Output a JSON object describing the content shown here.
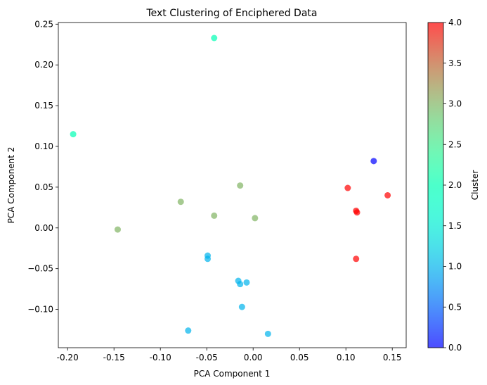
{
  "chart_data": {
    "type": "scatter",
    "title": "Text Clustering of Enciphered Data",
    "xlabel": "PCA Component 1",
    "ylabel": "PCA Component 2",
    "xlim": [
      -0.21,
      0.165
    ],
    "ylim": [
      -0.147,
      0.252
    ],
    "xticks": [
      "-0.20",
      "-0.15",
      "-0.10",
      "-0.05",
      "0.00",
      "0.05",
      "0.10",
      "0.15"
    ],
    "xtick_values": [
      -0.2,
      -0.15,
      -0.1,
      -0.05,
      0.0,
      0.05,
      0.1,
      0.15
    ],
    "yticks": [
      "−0.10",
      "−0.05",
      "0.00",
      "0.05",
      "0.10",
      "0.15",
      "0.20",
      "0.25"
    ],
    "ytick_values": [
      -0.1,
      -0.05,
      0.0,
      0.05,
      0.1,
      0.15,
      0.2,
      0.25
    ],
    "colorbar": {
      "label": "Cluster",
      "min": 0,
      "max": 4,
      "ticks": [
        "0.0",
        "0.5",
        "1.0",
        "1.5",
        "2.0",
        "2.5",
        "3.0",
        "3.5",
        "4.0"
      ],
      "tick_values": [
        0,
        0.5,
        1,
        1.5,
        2,
        2.5,
        3,
        3.5,
        4
      ],
      "colormap": "rainbow"
    },
    "grid": false,
    "points": [
      {
        "x": -0.042,
        "y": 0.233,
        "cluster": 2
      },
      {
        "x": -0.194,
        "y": 0.115,
        "cluster": 2
      },
      {
        "x": 0.13,
        "y": 0.082,
        "cluster": 0
      },
      {
        "x": 0.102,
        "y": 0.049,
        "cluster": 4
      },
      {
        "x": 0.145,
        "y": 0.04,
        "cluster": 4
      },
      {
        "x": 0.111,
        "y": 0.021,
        "cluster": 4
      },
      {
        "x": 0.112,
        "y": 0.019,
        "cluster": 4
      },
      {
        "x": 0.111,
        "y": -0.038,
        "cluster": 4
      },
      {
        "x": -0.014,
        "y": 0.052,
        "cluster": 3
      },
      {
        "x": -0.078,
        "y": 0.032,
        "cluster": 3
      },
      {
        "x": -0.042,
        "y": 0.015,
        "cluster": 3
      },
      {
        "x": 0.002,
        "y": 0.012,
        "cluster": 3
      },
      {
        "x": -0.146,
        "y": -0.002,
        "cluster": 3
      },
      {
        "x": -0.049,
        "y": -0.034,
        "cluster": 1
      },
      {
        "x": -0.049,
        "y": -0.038,
        "cluster": 1
      },
      {
        "x": -0.016,
        "y": -0.065,
        "cluster": 1
      },
      {
        "x": -0.014,
        "y": -0.069,
        "cluster": 1
      },
      {
        "x": -0.007,
        "y": -0.067,
        "cluster": 1
      },
      {
        "x": -0.012,
        "y": -0.097,
        "cluster": 1
      },
      {
        "x": -0.07,
        "y": -0.126,
        "cluster": 1
      },
      {
        "x": 0.016,
        "y": -0.13,
        "cluster": 1
      }
    ]
  }
}
